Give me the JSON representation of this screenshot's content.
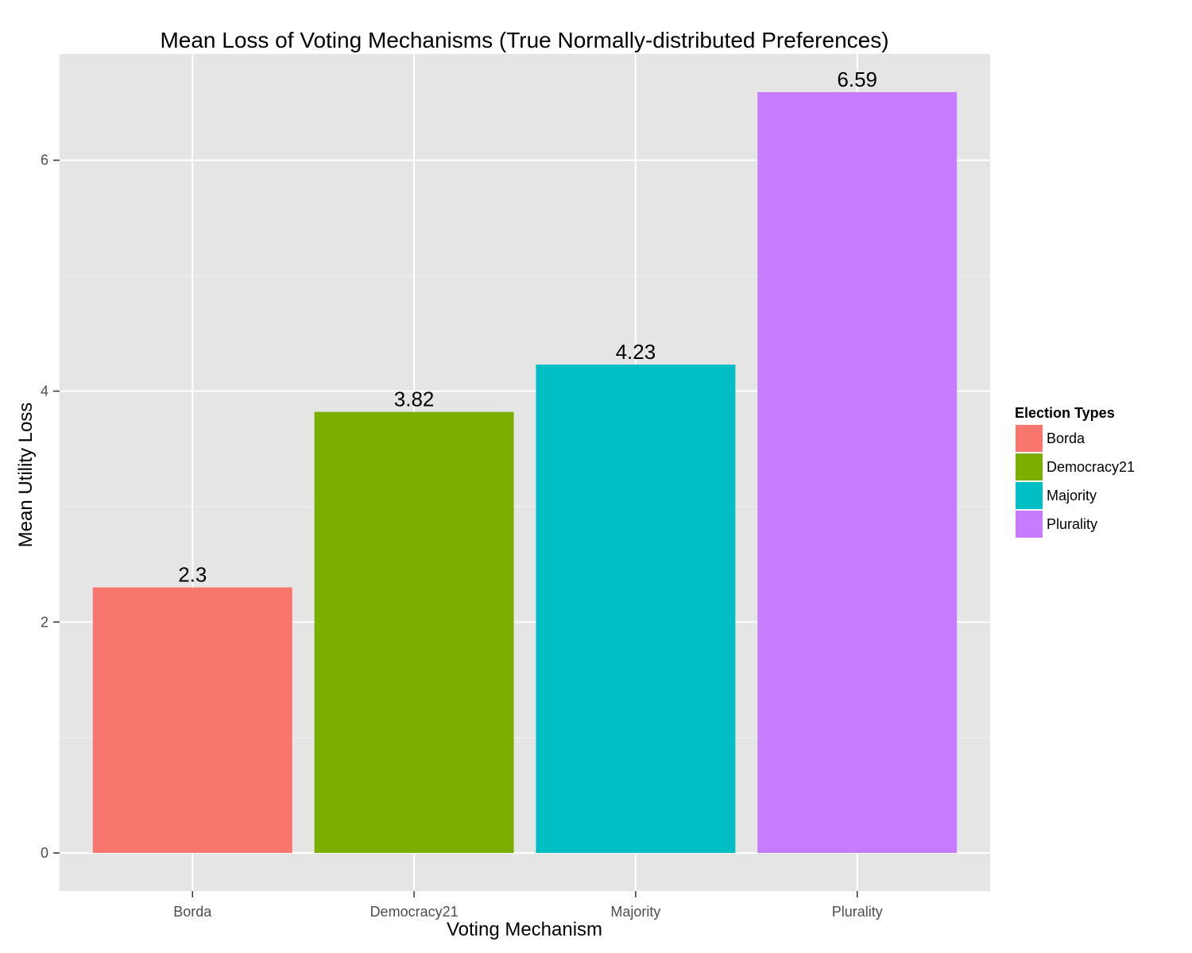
{
  "chart_data": {
    "type": "bar",
    "title": "Mean Loss of Voting Mechanisms (True Normally-distributed Preferences)",
    "xlabel": "Voting Mechanism",
    "ylabel": "Mean Utility Loss",
    "categories": [
      "Borda",
      "Democracy21",
      "Majority",
      "Plurality"
    ],
    "values": [
      2.3,
      3.82,
      4.23,
      6.59
    ],
    "data_labels": [
      "2.3",
      "3.82",
      "4.23",
      "6.59"
    ],
    "colors": [
      "#F8766D",
      "#7CAE00",
      "#00BFC4",
      "#C77CFF"
    ],
    "ylim": [
      -0.33,
      6.92
    ],
    "yticks": [
      0,
      2,
      4,
      6
    ],
    "ytick_labels": [
      "0",
      "2",
      "4",
      "6"
    ],
    "grid": true,
    "legend": {
      "title": "Election Types",
      "position": "right",
      "entries": [
        "Borda",
        "Democracy21",
        "Majority",
        "Plurality"
      ]
    },
    "panel_background": "#E5E5E5",
    "grid_color": "#FFFFFF"
  }
}
